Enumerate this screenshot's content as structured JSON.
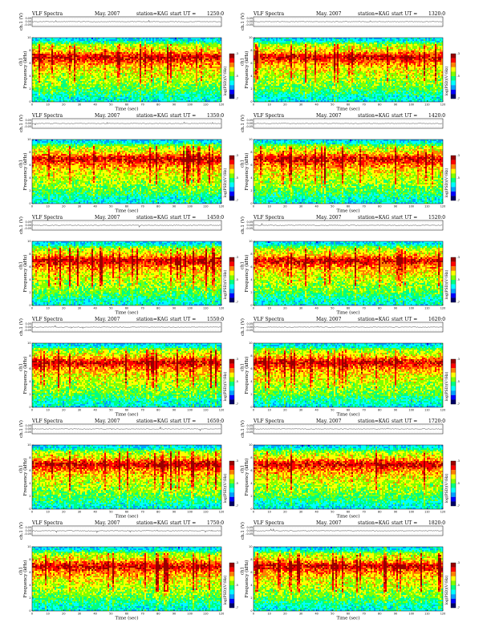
{
  "header": {
    "title": "VLF Spectra",
    "date": "May. 2007",
    "station": "station=KAG",
    "start_label": "start  UT =",
    "start_suffix": "",
    "start_times": [
      "1250:0",
      "1320:0",
      "1350:0",
      "1420:0",
      "1450:0",
      "1520:0",
      "1550:0",
      "1620:0",
      "1650:0",
      "1720:0",
      "1750:0",
      "1820:0"
    ]
  },
  "labels": {
    "ch1_axis": "ch.1 (V)",
    "ch1_axis_alt": "ch1",
    "freq_axis": "Frequency (kHz)",
    "time_axis": "Time (sec)",
    "colorbar": "log(PSD)(V²/Hz)"
  },
  "chart_data": {
    "type": "heatmap",
    "panel_count": 12,
    "xlim": [
      0,
      120
    ],
    "x_ticks": [
      0,
      10,
      20,
      30,
      40,
      50,
      60,
      70,
      80,
      90,
      100,
      110,
      120
    ],
    "ylim": [
      0,
      10
    ],
    "y_ticks": [
      0,
      2,
      4,
      6,
      8,
      10
    ],
    "waveform_ticks": [
      "0.05",
      "0.00",
      "-0.05"
    ],
    "colorbar_ticks": [
      "-3",
      "-5",
      "-7"
    ],
    "colormap": [
      "#000066",
      "#0000ff",
      "#00a0ff",
      "#00ffff",
      "#00ff80",
      "#80ff00",
      "#ffff00",
      "#ff8000",
      "#ff0000",
      "#990000"
    ],
    "intensity_profile": {
      "freq_khz": [
        0,
        1,
        2,
        3,
        4,
        5,
        6,
        7,
        8,
        9,
        9.5,
        10
      ],
      "level": [
        0.35,
        0.4,
        0.5,
        0.56,
        0.6,
        0.65,
        0.74,
        0.9,
        0.66,
        0.56,
        0.34,
        0.3
      ]
    },
    "panels": [
      {
        "start_ut": "1250:0"
      },
      {
        "start_ut": "1320:0"
      },
      {
        "start_ut": "1350:0"
      },
      {
        "start_ut": "1420:0"
      },
      {
        "start_ut": "1450:0"
      },
      {
        "start_ut": "1520:0"
      },
      {
        "start_ut": "1550:0"
      },
      {
        "start_ut": "1620:0"
      },
      {
        "start_ut": "1650:0"
      },
      {
        "start_ut": "1720:0"
      },
      {
        "start_ut": "1750:0"
      },
      {
        "start_ut": "1820:0"
      }
    ]
  }
}
